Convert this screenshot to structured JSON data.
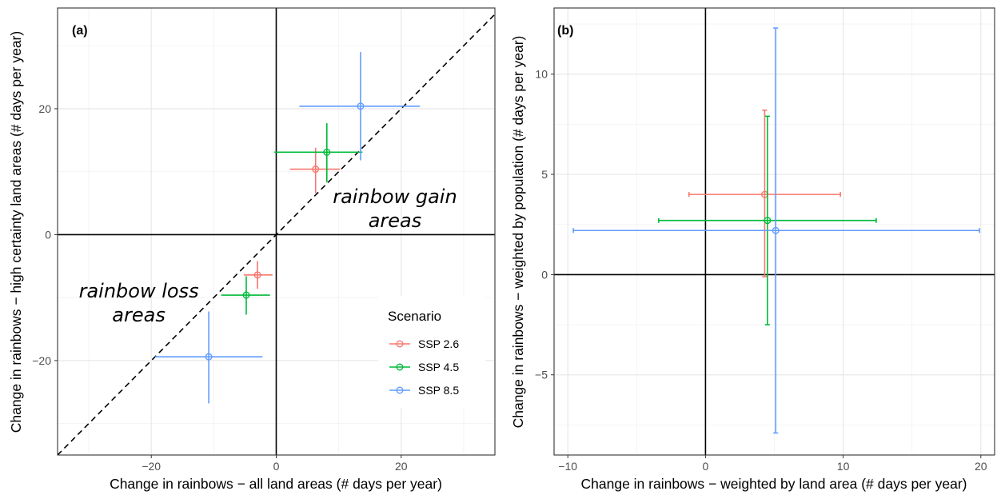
{
  "chart_data": [
    {
      "panel_label": "(a)",
      "type": "scatter",
      "xlabel": "Change in rainbows − all land areas (# days per year)",
      "ylabel": "Change in rainbows − high certainty land areas (# days per year)",
      "xlim": [
        -35,
        35
      ],
      "ylim": [
        -35,
        36
      ],
      "x_ticks": [
        {
          "v": -20,
          "label": "−20"
        },
        {
          "v": 0,
          "label": "0"
        },
        {
          "v": 20,
          "label": "20"
        }
      ],
      "y_ticks": [
        {
          "v": -20,
          "label": "−20"
        },
        {
          "v": 0,
          "label": "0"
        },
        {
          "v": 20,
          "label": "20"
        }
      ],
      "minor_x": [
        -30,
        -10,
        10,
        30
      ],
      "minor_y": [
        -30,
        -10,
        10,
        30
      ],
      "grid": true,
      "zero_lines": true,
      "diagonal": "y = x (dashed)",
      "annotations": [
        {
          "lines": [
            "rainbow gain",
            "areas"
          ],
          "x": 19,
          "y": 5
        },
        {
          "lines": [
            "rainbow loss",
            "areas"
          ],
          "x": -22,
          "y": -10
        }
      ],
      "legend": {
        "title": "Scenario",
        "position": "bottom-right"
      },
      "series": [
        {
          "name": "SSP 2.6",
          "color": "#F8766D",
          "x": 6.3,
          "y": 10.4,
          "x_range": [
            2.2,
            10.2
          ],
          "y_range": [
            6.6,
            13.8
          ]
        },
        {
          "name": "SSP 4.5",
          "color": "#00BA38",
          "x": 8.1,
          "y": 13.1,
          "x_range": [
            -0.3,
            13.8
          ],
          "y_range": [
            8.3,
            17.7
          ]
        },
        {
          "name": "SSP 8.5",
          "color": "#619CFF",
          "x": 13.5,
          "y": 20.4,
          "x_range": [
            3.7,
            23.0
          ],
          "y_range": [
            11.8,
            29.0
          ]
        },
        {
          "name": "SSP 2.6",
          "color": "#F8766D",
          "x": -3.0,
          "y": -6.4,
          "x_range": [
            -5.2,
            -0.6
          ],
          "y_range": [
            -8.6,
            -4.2
          ]
        },
        {
          "name": "SSP 4.5",
          "color": "#00BA38",
          "x": -4.8,
          "y": -9.6,
          "x_range": [
            -8.8,
            -1.0
          ],
          "y_range": [
            -12.7,
            -6.6
          ]
        },
        {
          "name": "SSP 8.5",
          "color": "#619CFF",
          "x": -10.8,
          "y": -19.4,
          "x_range": [
            -19.4,
            -2.2
          ],
          "y_range": [
            -26.8,
            -12.2
          ]
        }
      ]
    },
    {
      "panel_label": "(b)",
      "type": "scatter",
      "xlabel": "Change in rainbows − weighted by land area (# days per year)",
      "ylabel": "Change in rainbows − weighted by population (# days per year)",
      "xlim": [
        -11,
        21
      ],
      "ylim": [
        -9,
        13.3
      ],
      "x_ticks": [
        {
          "v": -10,
          "label": "−10"
        },
        {
          "v": 0,
          "label": "0"
        },
        {
          "v": 10,
          "label": "10"
        },
        {
          "v": 20,
          "label": "20"
        }
      ],
      "y_ticks": [
        {
          "v": -5,
          "label": "−5"
        },
        {
          "v": 0,
          "label": "0"
        },
        {
          "v": 5,
          "label": "5"
        },
        {
          "v": 10,
          "label": "10"
        }
      ],
      "minor_x": [
        -5,
        5,
        15
      ],
      "minor_y": [
        -7.5,
        -2.5,
        2.5,
        7.5,
        12.5
      ],
      "grid": true,
      "zero_lines": true,
      "series": [
        {
          "name": "SSP 2.6",
          "color": "#F8766D",
          "x": 4.3,
          "y": 4.0,
          "x_range": [
            -1.2,
            9.8
          ],
          "y_range": [
            -0.1,
            8.2
          ]
        },
        {
          "name": "SSP 4.5",
          "color": "#00BA38",
          "x": 4.5,
          "y": 2.7,
          "x_range": [
            -3.4,
            12.4
          ],
          "y_range": [
            -2.5,
            7.9
          ]
        },
        {
          "name": "SSP 8.5",
          "color": "#619CFF",
          "x": 5.1,
          "y": 2.2,
          "x_range": [
            -9.6,
            19.9
          ],
          "y_range": [
            -7.9,
            12.3
          ]
        }
      ]
    }
  ]
}
